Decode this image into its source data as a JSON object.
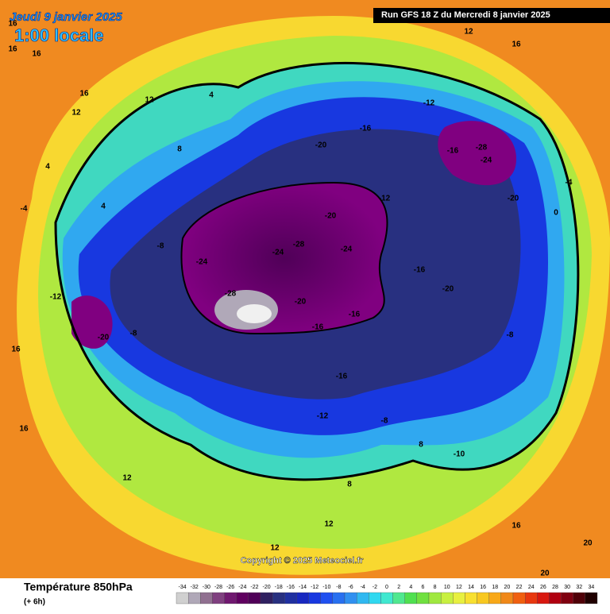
{
  "header": {
    "date": "Jeudi 9 janvier 2025",
    "time": "1:00 locale",
    "run": "Run GFS 18 Z du Mercredi 8 janvier 2025"
  },
  "copyright": "Copyright © 2025 Meteociel.fr",
  "legend": {
    "title": "Température 850hPa",
    "subtitle": "(+ 6h)",
    "values": [
      -34,
      -32,
      -30,
      -28,
      -26,
      -24,
      -22,
      -20,
      -18,
      -16,
      -14,
      -12,
      -10,
      -8,
      -6,
      -4,
      -2,
      0,
      2,
      4,
      6,
      8,
      10,
      12,
      14,
      16,
      18,
      20,
      22,
      24,
      26,
      28,
      30,
      32,
      34
    ],
    "colors": [
      "#d0d0d0",
      "#b0a8b8",
      "#907090",
      "#804080",
      "#701870",
      "#600060",
      "#500058",
      "#302060",
      "#283080",
      "#2030a0",
      "#1828c0",
      "#1838e0",
      "#2050f0",
      "#2870f0",
      "#3090f0",
      "#30b8f0",
      "#30d8f0",
      "#40e8d0",
      "#50e890",
      "#50e050",
      "#70e040",
      "#a0e840",
      "#c8f040",
      "#e8f040",
      "#f8e030",
      "#f8c820",
      "#f8a818",
      "#f08818",
      "#f06010",
      "#e83810",
      "#d81810",
      "#b00010",
      "#800010",
      "#500008",
      "#200000"
    ]
  },
  "map_labels": [
    16,
    16,
    16,
    16,
    12,
    12,
    8,
    4,
    -4,
    4,
    -8,
    -24,
    -12,
    -20,
    -8,
    -28,
    -24,
    -28,
    -20,
    -24,
    -20,
    -16,
    -16,
    -16,
    -20,
    -12,
    -12,
    -16,
    -24,
    -28,
    -20,
    -16,
    -20,
    -8,
    -4,
    0,
    -16,
    -12,
    -8,
    8,
    -10,
    8,
    12,
    12,
    16,
    20,
    20,
    12,
    16,
    16,
    4,
    12,
    16
  ]
}
